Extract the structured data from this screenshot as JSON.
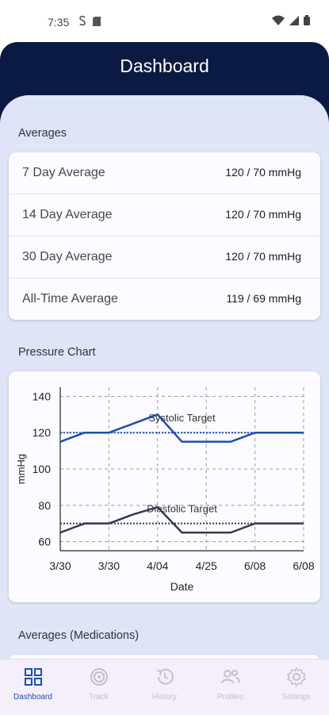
{
  "status": {
    "time": "7:35"
  },
  "header": {
    "title": "Dashboard"
  },
  "sections": {
    "averages": "Averages",
    "chart": "Pressure Chart",
    "medications": "Averages (Medications)"
  },
  "averages": [
    {
      "label": "7 Day Average",
      "value": "120 / 70 mmHg"
    },
    {
      "label": "14 Day Average",
      "value": "120 / 70 mmHg"
    },
    {
      "label": "30 Day Average",
      "value": "120 / 70 mmHg"
    },
    {
      "label": "All-Time Average",
      "value": "119 / 69 mmHg"
    }
  ],
  "chart_data": {
    "type": "line",
    "xlabel": "Date",
    "ylabel": "mmHg",
    "ylim": [
      55,
      145
    ],
    "yticks": [
      60,
      80,
      100,
      120,
      140
    ],
    "x_tick_labels": [
      "3/30",
      "3/30",
      "4/04",
      "4/25",
      "6/08",
      "6/08"
    ],
    "x": [
      0,
      0.5,
      1,
      1.5,
      2,
      2.5,
      3,
      3.5,
      4,
      4.5,
      5
    ],
    "grid": true,
    "series": [
      {
        "role": "systolic",
        "values": [
          115,
          120,
          120,
          125,
          130,
          115,
          115,
          115,
          120,
          120,
          120
        ],
        "color": "#1d4eb5"
      },
      {
        "role": "diastolic",
        "values": [
          65,
          70,
          70,
          75,
          79,
          65,
          65,
          65,
          70,
          70,
          70
        ],
        "color": "#2f3b55"
      }
    ],
    "targets": [
      {
        "name": "Systolic Target",
        "value": 120,
        "color": "#1d4eb5"
      },
      {
        "name": "Diastolic Target",
        "value": 70,
        "color": "#2f3b55"
      }
    ]
  },
  "nav": {
    "items": [
      {
        "label": "Dashboard",
        "icon": "dashboard-icon",
        "active": true
      },
      {
        "label": "Track",
        "icon": "track-icon",
        "active": false
      },
      {
        "label": "History",
        "icon": "history-icon",
        "active": false
      },
      {
        "label": "Profiles",
        "icon": "profiles-icon",
        "active": false
      },
      {
        "label": "Settings",
        "icon": "settings-icon",
        "active": false
      }
    ]
  },
  "colors": {
    "header_bg": "#0a1a43",
    "content_bg": "#dfe5f6",
    "accent": "#1d4eb5"
  }
}
